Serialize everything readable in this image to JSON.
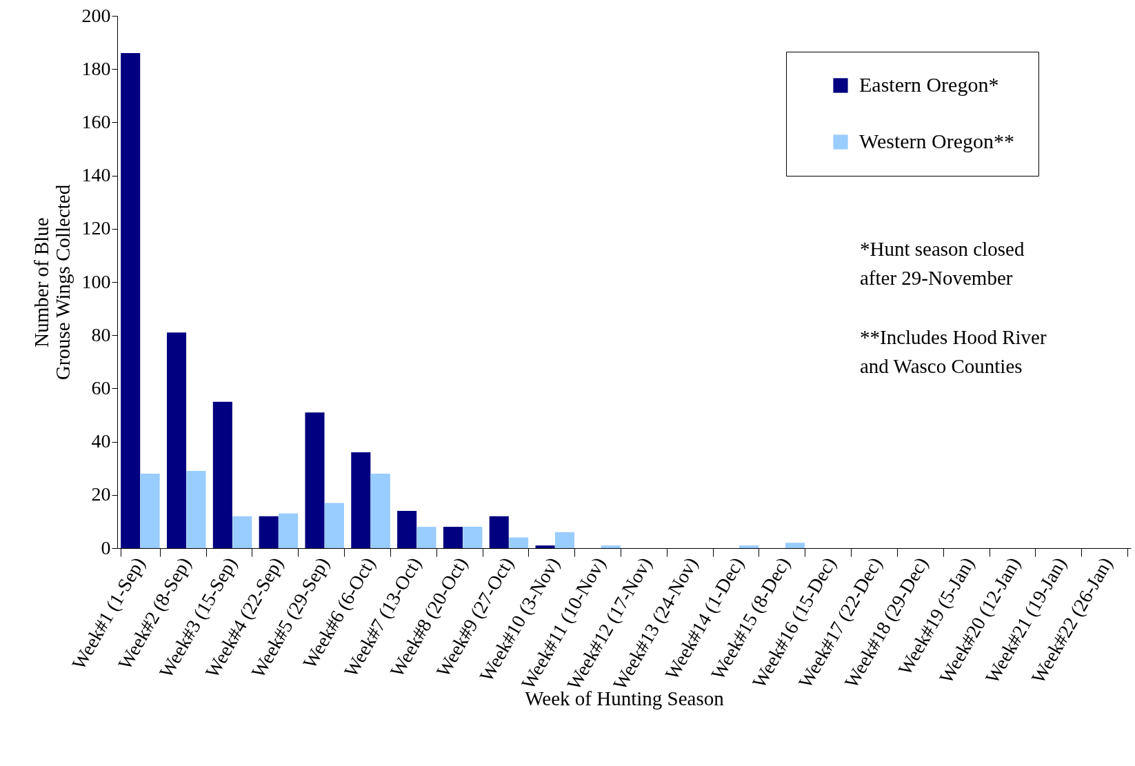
{
  "chart_data": {
    "type": "bar",
    "xlabel": "Week of Hunting Season",
    "ylabel": "Number of Blue Grouse Wings Collected",
    "categories": [
      "Week#1 (1-Sep)",
      "Week#2 (8-Sep)",
      "Week#3 (15-Sep)",
      "Week#4 (22-Sep)",
      "Week#5 (29-Sep)",
      "Week#6 (6-Oct)",
      "Week#7 (13-Oct)",
      "Week#8 (20-Oct)",
      "Week#9 (27-Oct)",
      "Week#10 (3-Nov)",
      "Week#11 (10-Nov)",
      "Week#12 (17-Nov)",
      "Week#13 (24-Nov)",
      "Week#14 (1-Dec)",
      "Week#15 (8-Dec)",
      "Week#16 (15-Dec)",
      "Week#17 (22-Dec)",
      "Week#18 (29-Dec)",
      "Week#19 (5-Jan)",
      "Week#20 (12-Jan)",
      "Week#21 (19-Jan)",
      "Week#22 (26-Jan)"
    ],
    "series": [
      {
        "name": "Eastern Oregon*",
        "color": "#000080",
        "values": [
          186,
          81,
          55,
          12,
          51,
          36,
          14,
          8,
          12,
          1,
          0,
          0,
          0,
          0,
          0,
          0,
          0,
          0,
          0,
          0,
          0,
          0
        ]
      },
      {
        "name": "Western Oregon**",
        "color": "#99ccff",
        "values": [
          28,
          29,
          12,
          13,
          17,
          28,
          8,
          8,
          4,
          6,
          1,
          0,
          0,
          1,
          2,
          0,
          0,
          0,
          0,
          0,
          0,
          0
        ]
      }
    ],
    "ylim": [
      0,
      200
    ],
    "yticks": [
      0,
      20,
      40,
      60,
      80,
      100,
      120,
      140,
      160,
      180,
      200
    ],
    "grid": false,
    "legend": "top right",
    "annotations": [
      "*Hunt season closed after 29-November",
      "**Includes Hood River and Wasco Counties"
    ]
  }
}
